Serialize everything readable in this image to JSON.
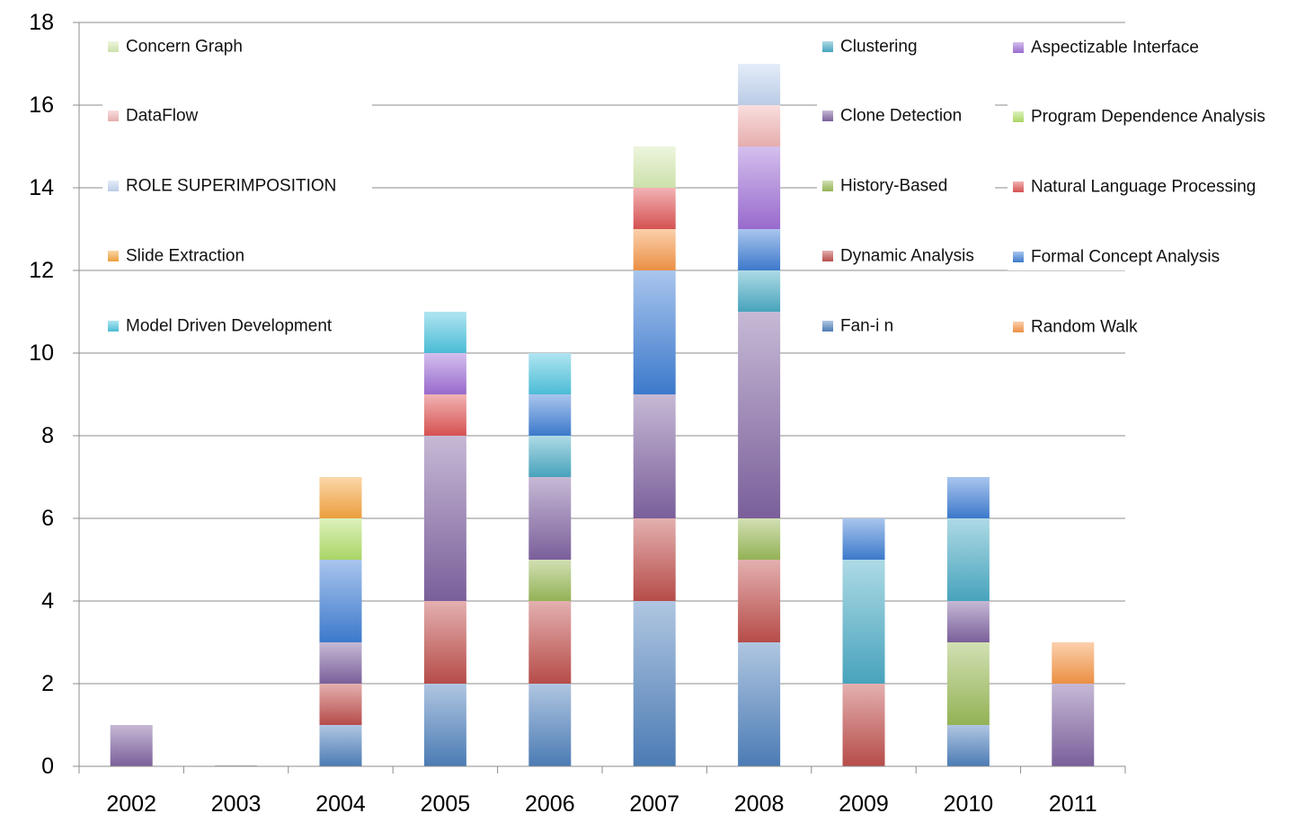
{
  "chart_data": {
    "type": "bar",
    "stacked": true,
    "categories": [
      "2002",
      "2003",
      "2004",
      "2005",
      "2006",
      "2007",
      "2008",
      "2009",
      "2010",
      "2011"
    ],
    "ylim": [
      0,
      18
    ],
    "yticks": [
      0,
      2,
      4,
      6,
      8,
      10,
      12,
      14,
      16,
      18
    ],
    "grid": "horizontal",
    "legend_placement": "top, inside plot, three columns",
    "series": [
      {
        "name": "Fan-i n",
        "color": "#4f81bd",
        "values": [
          0,
          0,
          1,
          2,
          2,
          4,
          3,
          0,
          1,
          0
        ]
      },
      {
        "name": "Dynamic Analysis",
        "color": "#c0504d",
        "values": [
          0,
          0,
          1,
          2,
          2,
          2,
          2,
          2,
          0,
          0
        ]
      },
      {
        "name": "History-Based",
        "color": "#9bbb59",
        "values": [
          0,
          0,
          0,
          0,
          1,
          0,
          1,
          0,
          2,
          0
        ]
      },
      {
        "name": "Clone Detection",
        "color": "#8064a2",
        "values": [
          1,
          0,
          1,
          4,
          2,
          3,
          5,
          0,
          1,
          2
        ]
      },
      {
        "name": "Clustering",
        "color": "#4bacc6",
        "values": [
          0,
          0,
          0,
          0,
          1,
          0,
          1,
          3,
          2,
          0
        ]
      },
      {
        "name": "Formal Concept Analysis",
        "color": "#3f7fd6",
        "values": [
          0,
          0,
          2,
          0,
          1,
          3,
          1,
          1,
          1,
          0
        ]
      },
      {
        "name": "Random Walk",
        "color": "#f79646",
        "values": [
          0,
          0,
          0,
          0,
          0,
          1,
          0,
          0,
          0,
          1
        ]
      },
      {
        "name": "Natural Language Processing",
        "color": "#e05555",
        "values": [
          0,
          0,
          0,
          1,
          0,
          1,
          0,
          0,
          0,
          0
        ]
      },
      {
        "name": "Program Dependence Analysis",
        "color": "#b3e06a",
        "values": [
          0,
          0,
          1,
          0,
          0,
          0,
          0,
          0,
          0,
          0
        ]
      },
      {
        "name": "Aspectizable Interface",
        "color": "#a070d8",
        "values": [
          0,
          0,
          0,
          1,
          0,
          0,
          2,
          0,
          0,
          0
        ]
      },
      {
        "name": "Concern Graph",
        "color": "#d7ecb4",
        "values": [
          0,
          0,
          0,
          0,
          0,
          1,
          0,
          0,
          0,
          0
        ]
      },
      {
        "name": "DataFlow",
        "color": "#f2b6b6",
        "values": [
          0,
          0,
          0,
          0,
          0,
          0,
          1,
          0,
          0,
          0
        ]
      },
      {
        "name": "ROLE SUPERIMPOSITION",
        "color": "#c4d6f2",
        "values": [
          0,
          0,
          0,
          0,
          0,
          0,
          1,
          0,
          0,
          0
        ]
      },
      {
        "name": "Slide Extraction",
        "color": "#f7a640",
        "values": [
          0,
          0,
          1,
          0,
          0,
          0,
          0,
          0,
          0,
          0
        ]
      },
      {
        "name": "Model Driven Development",
        "color": "#4fc6e0",
        "values": [
          0,
          0,
          0,
          1,
          1,
          0,
          0,
          0,
          0,
          0
        ]
      }
    ],
    "legend": [
      [
        "Concern Graph",
        "DataFlow",
        "ROLE SUPERIMPOSITION",
        "Slide Extraction",
        "Model Driven Development"
      ],
      [
        "Clustering",
        "Clone Detection",
        "History-Based",
        "Dynamic Analysis",
        "Fan-i n"
      ],
      [
        "Aspectizable Interface",
        "Program Dependence Analysis",
        "Natural Language Processing",
        "Formal Concept Analysis",
        "Random Walk"
      ]
    ]
  }
}
